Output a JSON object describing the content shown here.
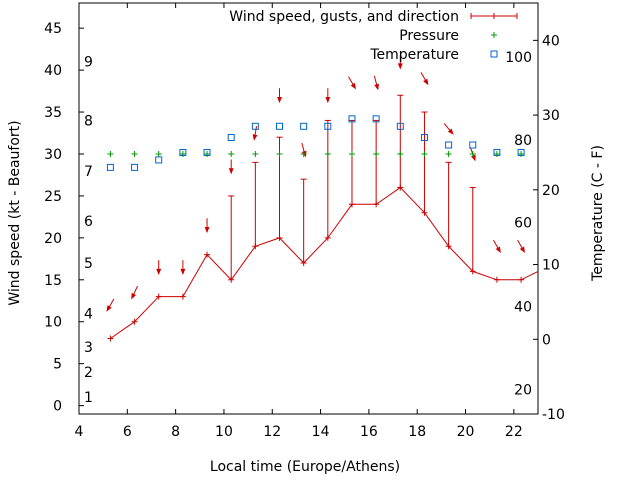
{
  "chart_data": {
    "type": "line",
    "xlabel": "Local time (Europe/Athens)",
    "ylabel": "Wind speed (kt - Beaufort)",
    "y2label": "Temperature (C - F)",
    "xlim": [
      4,
      23
    ],
    "ylim": [
      -1,
      48
    ],
    "y2lim": [
      -10,
      45
    ],
    "x_ticks": [
      4,
      6,
      8,
      10,
      12,
      14,
      16,
      18,
      20,
      22
    ],
    "y_ticks": [
      0,
      5,
      10,
      15,
      20,
      25,
      30,
      35,
      40,
      45
    ],
    "y2_ticks": [
      -10,
      0,
      10,
      20,
      30,
      40
    ],
    "beaufort_labels": [
      {
        "text": "1",
        "y": 1
      },
      {
        "text": "2",
        "y": 4
      },
      {
        "text": "3",
        "y": 7
      },
      {
        "text": "4",
        "y": 11
      },
      {
        "text": "5",
        "y": 17
      },
      {
        "text": "6",
        "y": 22
      },
      {
        "text": "7",
        "y": 28
      },
      {
        "text": "8",
        "y": 34
      },
      {
        "text": "9",
        "y": 41
      }
    ],
    "fahrenheit_labels": [
      {
        "text": "20",
        "t": -6.7
      },
      {
        "text": "40",
        "t": 4.4
      },
      {
        "text": "60",
        "t": 15.6
      },
      {
        "text": "80",
        "t": 26.7
      },
      {
        "text": "100",
        "t": 37.8
      }
    ],
    "legend": {
      "position": "top-right",
      "entries": [
        "Wind speed, gusts, and direction",
        "Pressure",
        "Temperature"
      ]
    },
    "colors": {
      "wind": "#cc0000",
      "pressure": "#009900",
      "temperature": "#0066cc"
    },
    "series": [
      {
        "name": "Wind speed, gusts, and direction",
        "x": [
          5.3,
          6.3,
          7.3,
          8.3,
          9.3,
          10.3,
          11.3,
          12.3,
          13.3,
          14.3,
          15.3,
          16.3,
          17.3,
          18.3,
          19.3,
          20.3,
          21.3,
          22.3,
          23
        ],
        "values": [
          8,
          10,
          13,
          13,
          18,
          15,
          19,
          20,
          17,
          20,
          24,
          24,
          26,
          23,
          19,
          16,
          15,
          15,
          16
        ],
        "gusts": [
          null,
          null,
          null,
          null,
          null,
          25,
          29,
          32,
          27,
          34,
          34,
          34,
          37,
          35,
          29,
          26,
          null,
          null,
          null
        ]
      },
      {
        "name": "Pressure",
        "x": [
          5.3,
          6.3,
          7.3,
          8.3,
          9.3,
          10.3,
          11.3,
          12.3,
          13.3,
          14.3,
          15.3,
          16.3,
          17.3,
          18.3,
          19.3,
          20.3,
          21.3,
          22.3
        ],
        "values": [
          30,
          30,
          30,
          30,
          30,
          30,
          30,
          30,
          30,
          30,
          30,
          30,
          30,
          30,
          30,
          30,
          30,
          30
        ]
      },
      {
        "name": "Temperature",
        "x": [
          5.3,
          6.3,
          7.3,
          8.3,
          9.3,
          10.3,
          11.3,
          12.3,
          13.3,
          14.3,
          15.3,
          16.3,
          17.3,
          18.3,
          19.3,
          20.3,
          21.3,
          22.3
        ],
        "values": [
          23,
          23,
          24,
          25,
          25,
          27,
          28.5,
          28.5,
          28.5,
          28.5,
          29.5,
          29.5,
          28.5,
          27,
          26,
          26,
          25,
          25
        ]
      }
    ],
    "direction_arrows": {
      "x": [
        5.3,
        6.3,
        7.3,
        8.3,
        9.3,
        10.3,
        11.3,
        12.3,
        13.3,
        14.3,
        15.3,
        16.3,
        17.3,
        18.3,
        19.3,
        20.3,
        21.3,
        22.3
      ],
      "y": [
        12,
        13.5,
        16.5,
        16.5,
        21.5,
        28.5,
        32.5,
        37,
        30.5,
        37,
        38.5,
        38.5,
        41,
        39,
        33,
        30,
        19,
        19
      ],
      "direction_deg": [
        30,
        25,
        0,
        0,
        0,
        0,
        10,
        0,
        345,
        0,
        330,
        345,
        0,
        330,
        320,
        340,
        330,
        330
      ]
    }
  }
}
